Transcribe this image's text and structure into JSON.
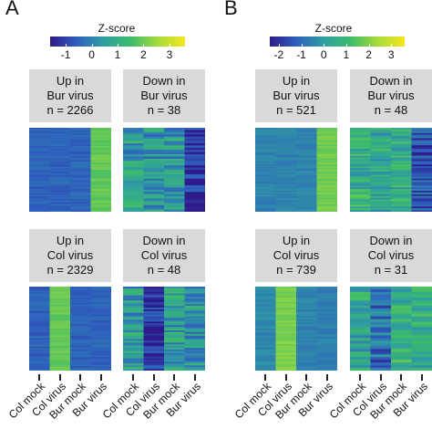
{
  "panels": [
    {
      "letter": "A",
      "colorbar": {
        "title": "Z-score",
        "range": [
          -1.6,
          3.6
        ],
        "ticks": [
          "-1",
          "0",
          "1",
          "2",
          "3"
        ],
        "tick_values": [
          -1,
          0,
          1,
          2,
          3
        ]
      },
      "facets": [
        {
          "line1": "Up in",
          "line2": "Bur virus",
          "line3": "n = 2266"
        },
        {
          "line1": "Down in",
          "line2": "Bur virus",
          "line3": "n = 38"
        },
        {
          "line1": "Up in",
          "line2": "Col virus",
          "line3": "n = 2329"
        },
        {
          "line1": "Down in",
          "line2": "Col virus",
          "line3": "n = 48"
        }
      ],
      "x_labels": [
        "Col mock",
        "Col virus",
        "Bur mock",
        "Bur virus"
      ]
    },
    {
      "letter": "B",
      "colorbar": {
        "title": "Z-score",
        "range": [
          -2.4,
          3.6
        ],
        "ticks": [
          "-2",
          "-1",
          "0",
          "1",
          "2",
          "3"
        ],
        "tick_values": [
          -2,
          -1,
          0,
          1,
          2,
          3
        ]
      },
      "facets": [
        {
          "line1": "Up in",
          "line2": "Bur virus",
          "line3": "n = 521"
        },
        {
          "line1": "Down in",
          "line2": "Bur virus",
          "line3": "n = 48"
        },
        {
          "line1": "Up in",
          "line2": "Col virus",
          "line3": "n = 739"
        },
        {
          "line1": "Down in",
          "line2": "Col virus",
          "line3": "n = 31"
        }
      ],
      "x_labels": [
        "Col mock",
        "Col virus",
        "Bur mock",
        "Bur virus"
      ]
    }
  ],
  "chart_data": [
    {
      "type": "heatmap",
      "title": "Z-score",
      "colormap": [
        "#2e1a8a",
        "#2f5fbf",
        "#2f9ea0",
        "#3dbb6a",
        "#a6dc3a",
        "#f6e61f"
      ],
      "x": [
        "Col mock",
        "Col virus",
        "Bur mock",
        "Bur virus"
      ],
      "facets": [
        {
          "name": "Up in Bur virus",
          "n": 2266,
          "mean_z": [
            -0.5,
            -0.5,
            -0.5,
            1.9
          ]
        },
        {
          "name": "Down in Bur virus",
          "n": 38,
          "mean_z": [
            0.6,
            0.3,
            0.5,
            -1.4
          ]
        },
        {
          "name": "Up in Col virus",
          "n": 2329,
          "mean_z": [
            -0.5,
            1.9,
            -0.5,
            -0.5
          ]
        },
        {
          "name": "Down in Col virus",
          "n": 48,
          "mean_z": [
            0.5,
            -1.2,
            0.6,
            0.4
          ]
        }
      ]
    },
    {
      "type": "heatmap",
      "title": "Z-score",
      "colormap": [
        "#2e1a8a",
        "#2f5fbf",
        "#2f9ea0",
        "#3dbb6a",
        "#a6dc3a",
        "#f6e61f"
      ],
      "x": [
        "Col mock",
        "Col virus",
        "Bur mock",
        "Bur virus"
      ],
      "facets": [
        {
          "name": "Up in Bur virus",
          "n": 521,
          "mean_z": [
            -0.5,
            -0.5,
            -0.5,
            1.8
          ]
        },
        {
          "name": "Down in Bur virus",
          "n": 48,
          "mean_z": [
            0.6,
            0.4,
            0.5,
            -1.4
          ]
        },
        {
          "name": "Up in Col virus",
          "n": 739,
          "mean_z": [
            -0.4,
            1.9,
            -0.5,
            -0.6
          ]
        },
        {
          "name": "Down in Col virus",
          "n": 31,
          "mean_z": [
            0.4,
            -1.0,
            0.7,
            0.5
          ]
        }
      ]
    }
  ]
}
